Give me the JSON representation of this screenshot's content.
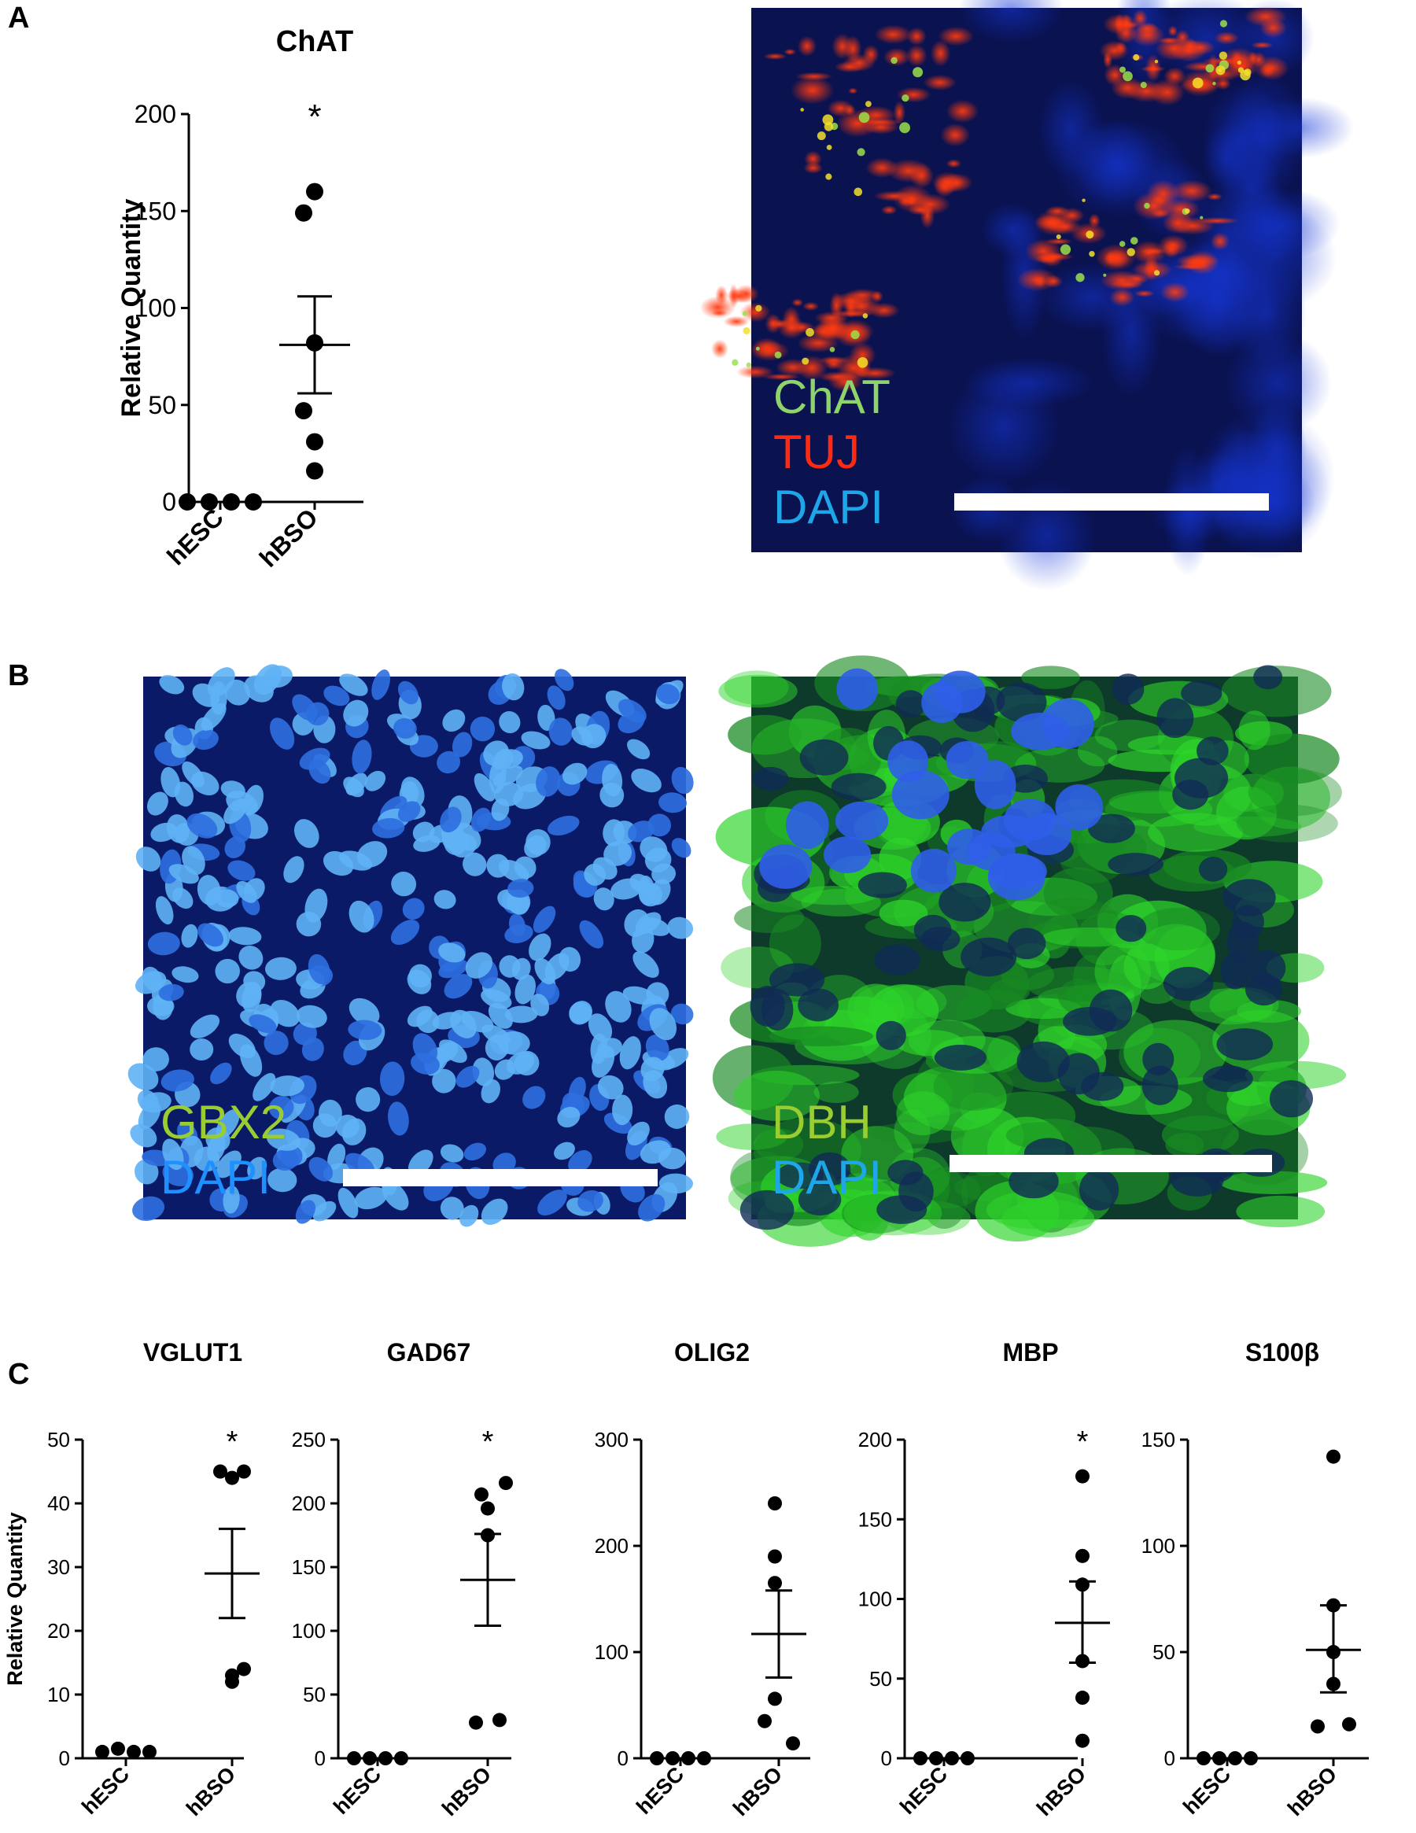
{
  "panels": {
    "a": "A",
    "b": "B",
    "c": "C"
  },
  "chart_data": [
    {
      "id": "chat",
      "type": "scatter",
      "title": "ChAT",
      "ylabel": "Relative Quantity",
      "xlabel": "",
      "categories": [
        "hESC",
        "hBSO"
      ],
      "ylim": [
        0,
        200
      ],
      "yticks": [
        0,
        50,
        100,
        150,
        200
      ],
      "points": [
        {
          "group": "hESC",
          "values": [
            0,
            0,
            0,
            0
          ]
        },
        {
          "group": "hBSO",
          "values": [
            160,
            149,
            82,
            47,
            31,
            16
          ]
        }
      ],
      "mean": {
        "hBSO": 81
      },
      "sem": {
        "hBSO": [
          56,
          106
        ]
      },
      "annotation": {
        "group": "hBSO",
        "text": "*"
      }
    },
    {
      "id": "vglut1",
      "type": "scatter",
      "title": "VGLUT1",
      "ylabel": "Relative Quantity",
      "categories": [
        "hESC",
        "hBSO"
      ],
      "ylim": [
        0,
        50
      ],
      "yticks": [
        0,
        10,
        20,
        30,
        40,
        50
      ],
      "points": [
        {
          "group": "hESC",
          "values": [
            1,
            1.5,
            1,
            1
          ]
        },
        {
          "group": "hBSO",
          "values": [
            45,
            45,
            44,
            14,
            13,
            12
          ]
        }
      ],
      "mean": {
        "hBSO": 29
      },
      "sem": {
        "hBSO": [
          22,
          36
        ]
      },
      "annotation": {
        "group": "hBSO",
        "text": "*"
      }
    },
    {
      "id": "gad67",
      "type": "scatter",
      "title": "GAD67",
      "ylabel": "",
      "categories": [
        "hESC",
        "hBSO"
      ],
      "ylim": [
        0,
        250
      ],
      "yticks": [
        0,
        50,
        100,
        150,
        200,
        250
      ],
      "points": [
        {
          "group": "hESC",
          "values": [
            0,
            0,
            0,
            0
          ]
        },
        {
          "group": "hBSO",
          "values": [
            216,
            207,
            196,
            175,
            30,
            28
          ]
        }
      ],
      "mean": {
        "hBSO": 140
      },
      "sem": {
        "hBSO": [
          104,
          176
        ]
      },
      "annotation": {
        "group": "hBSO",
        "text": "*"
      }
    },
    {
      "id": "olig2",
      "type": "scatter",
      "title": "OLIG2",
      "ylabel": "",
      "categories": [
        "hESC",
        "hBSO"
      ],
      "ylim": [
        0,
        300
      ],
      "yticks": [
        0,
        100,
        200,
        300
      ],
      "points": [
        {
          "group": "hESC",
          "values": [
            0,
            0,
            0,
            0
          ]
        },
        {
          "group": "hBSO",
          "values": [
            240,
            190,
            165,
            56,
            35,
            14
          ]
        }
      ],
      "mean": {
        "hBSO": 117
      },
      "sem": {
        "hBSO": [
          76,
          158
        ]
      },
      "annotation": null
    },
    {
      "id": "mbp",
      "type": "scatter",
      "title": "MBP",
      "ylabel": "",
      "categories": [
        "hESC",
        "hBSO"
      ],
      "ylim": [
        0,
        200
      ],
      "yticks": [
        0,
        50,
        100,
        150,
        200
      ],
      "points": [
        {
          "group": "hESC",
          "values": [
            0,
            0,
            0,
            0
          ]
        },
        {
          "group": "hBSO",
          "values": [
            177,
            127,
            109,
            61,
            38,
            11
          ]
        }
      ],
      "mean": {
        "hBSO": 85
      },
      "sem": {
        "hBSO": [
          60,
          111
        ]
      },
      "annotation": {
        "group": "hBSO",
        "text": "*"
      }
    },
    {
      "id": "s100b",
      "type": "scatter",
      "title": "S100β",
      "ylabel": "",
      "categories": [
        "hESC",
        "hBSO"
      ],
      "ylim": [
        0,
        150
      ],
      "yticks": [
        0,
        50,
        100,
        150
      ],
      "points": [
        {
          "group": "hESC",
          "values": [
            0,
            0,
            0,
            0
          ]
        },
        {
          "group": "hBSO",
          "values": [
            142,
            72,
            50,
            35,
            15,
            16
          ]
        }
      ],
      "mean": {
        "hBSO": 51
      },
      "sem": {
        "hBSO": [
          31,
          72
        ]
      },
      "annotation": null
    }
  ],
  "micrographs": {
    "chat_tuj": {
      "labels": [
        "ChAT",
        "TUJ",
        "DAPI"
      ],
      "colors": [
        "#8fd36b",
        "#ff2a10",
        "#1fa6e8"
      ]
    },
    "gbx2": {
      "labels": [
        "GBX2",
        "DAPI"
      ],
      "colors": [
        "#9acd32",
        "#1e90ff"
      ]
    },
    "dbh": {
      "labels": [
        "DBH",
        "DAPI"
      ],
      "colors": [
        "#9acd32",
        "#1fa6e8"
      ]
    }
  }
}
